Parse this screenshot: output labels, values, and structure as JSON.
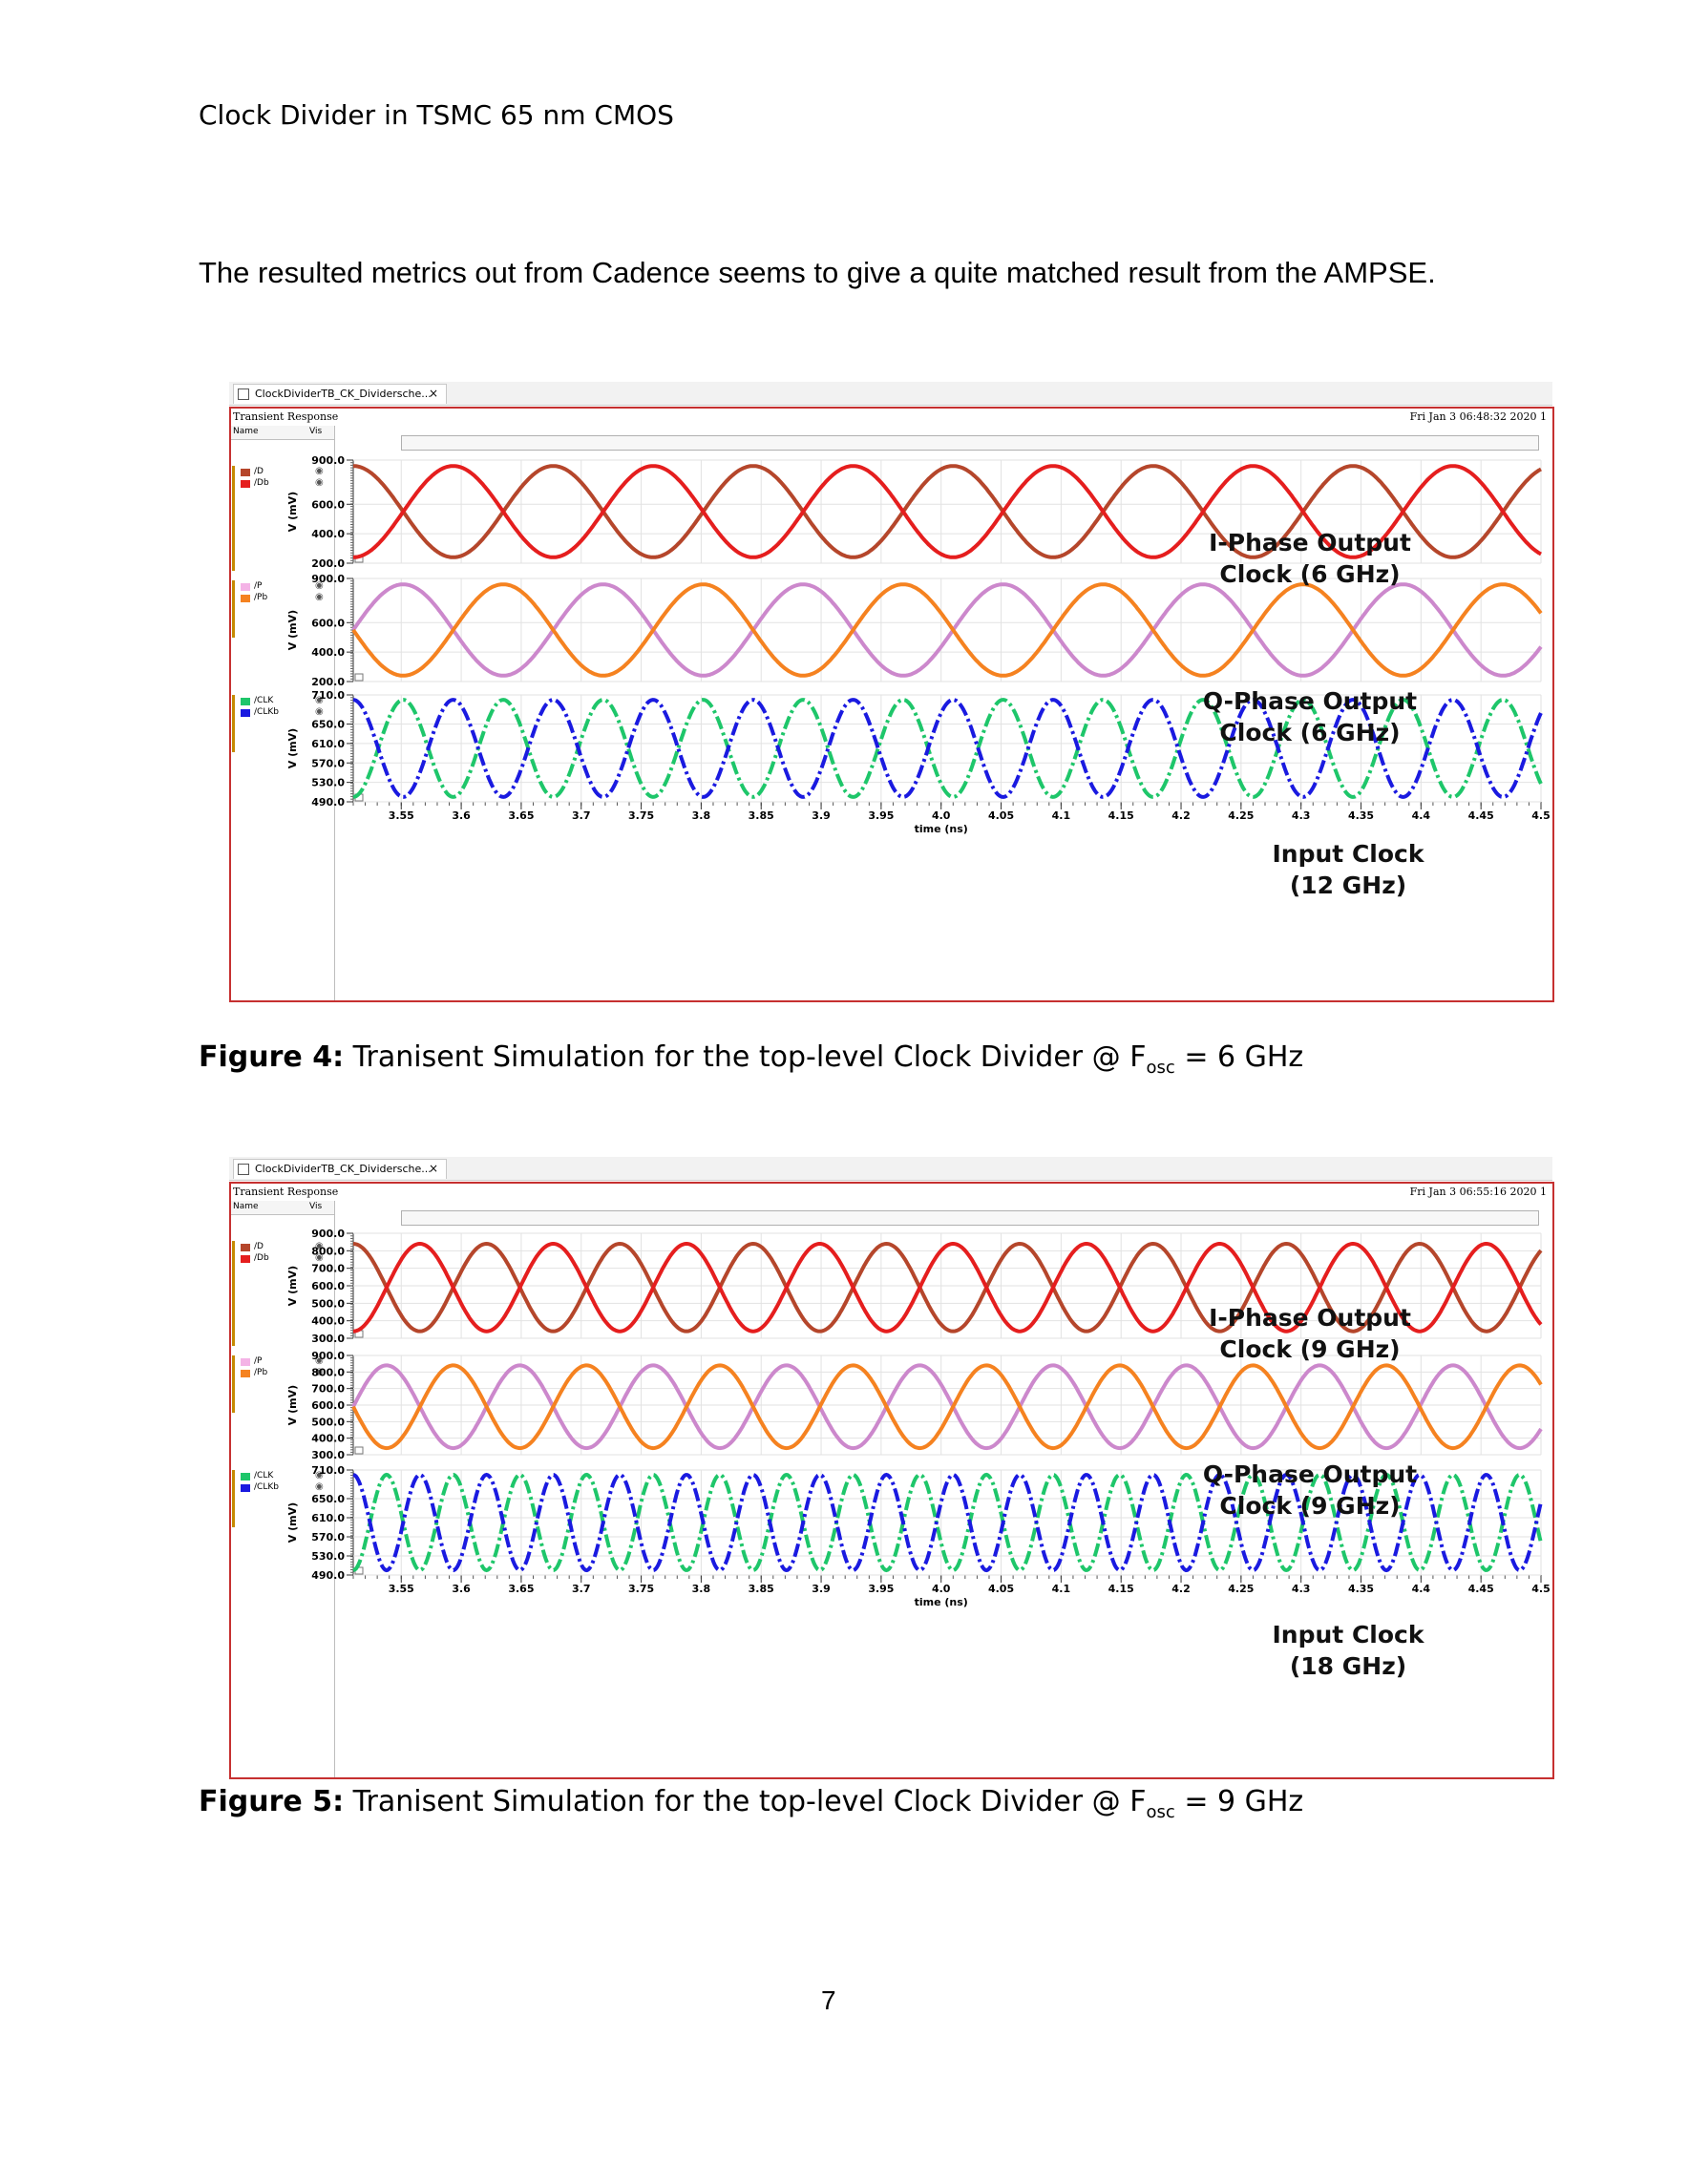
{
  "header": "Clock Divider in TSMC 65 nm CMOS",
  "intro": "The resulted metrics out from Cadence seems to give a quite matched result from the AMPSE.",
  "page_number": "7",
  "figures": [
    {
      "tab_label": "ClockDividerTB_CK_Dividersche...",
      "tab_close": "×",
      "panel_title": "Transient Response",
      "legend_head_name": "Name",
      "legend_head_vis": "Vis",
      "datestamp": "Fri Jan 3 06:48:32 2020  1",
      "caption_bold": "Figure 4:",
      "caption_text": " Tranisent Simulation for the top-level Clock Divider @ F",
      "caption_sub": "osc",
      "caption_tail": " = 6 GHz",
      "xlabel": "time (ns)",
      "ylabel": "V (mV)",
      "legend": [
        [
          {
            "name": "/D",
            "color": "#b5462b"
          },
          {
            "name": "/Db",
            "color": "#e51e1e"
          }
        ],
        [
          {
            "name": "/P",
            "color": "#f4b3e6"
          },
          {
            "name": "/Pb",
            "color": "#f58220"
          }
        ],
        [
          {
            "name": "/CLK",
            "color": "#1ec66a"
          },
          {
            "name": "/CLKb",
            "color": "#1a1ae0"
          }
        ]
      ],
      "overlays": [
        {
          "line1": "I-Phase Output",
          "line2": "Clock (6 GHz)"
        },
        {
          "line1": "Q-Phase Output",
          "line2": "Clock (6 GHz)"
        },
        {
          "line1": "Input Clock",
          "line2": "(12 GHz)"
        }
      ]
    },
    {
      "tab_label": "ClockDividerTB_CK_Dividersche...",
      "tab_close": "×",
      "panel_title": "Transient Response",
      "legend_head_name": "Name",
      "legend_head_vis": "Vis",
      "datestamp": "Fri Jan 3 06:55:16 2020  1",
      "caption_bold": "Figure 5:",
      "caption_text": " Tranisent Simulation for the top-level Clock Divider @ F",
      "caption_sub": "osc",
      "caption_tail": " = 9 GHz",
      "xlabel": "time (ns)",
      "ylabel": "V (mV)",
      "legend": [
        [
          {
            "name": "/D",
            "color": "#b5462b"
          },
          {
            "name": "/Db",
            "color": "#e51e1e"
          }
        ],
        [
          {
            "name": "/P",
            "color": "#f4b3e6"
          },
          {
            "name": "/Pb",
            "color": "#f58220"
          }
        ],
        [
          {
            "name": "/CLK",
            "color": "#1ec66a"
          },
          {
            "name": "/CLKb",
            "color": "#1a1ae0"
          }
        ]
      ],
      "overlays": [
        {
          "line1": "I-Phase Output",
          "line2": "Clock (9 GHz)"
        },
        {
          "line1": "Q-Phase Output",
          "line2": "Clock (9 GHz)"
        },
        {
          "line1": "Input Clock",
          "line2": "(18 GHz)"
        }
      ]
    }
  ],
  "chart_data": [
    {
      "type": "line",
      "title": "Transient Response",
      "xlabel": "time (ns)",
      "ylabel": "V (mV)",
      "xlim": [
        3.51,
        4.5
      ],
      "x_ticks": [
        "3.55",
        "3.6",
        "3.65",
        "3.7",
        "3.75",
        "3.8",
        "3.85",
        "3.9",
        "3.95",
        "4.0",
        "4.05",
        "4.1",
        "4.15",
        "4.2",
        "4.25",
        "4.3",
        "4.35",
        "4.4",
        "4.45",
        "4.5"
      ],
      "subplots": [
        {
          "ylim": [
            200,
            900
          ],
          "y_ticks": [
            "900.0",
            "600.0",
            "400.0",
            "200.0"
          ],
          "series": [
            {
              "name": "/D",
              "frequency_ghz": 6,
              "min": 240,
              "max": 860,
              "color": "#b5462b",
              "phase": 0
            },
            {
              "name": "/Db",
              "frequency_ghz": 6,
              "min": 240,
              "max": 860,
              "color": "#e51e1e",
              "phase": 0.5
            }
          ]
        },
        {
          "ylim": [
            200,
            900
          ],
          "y_ticks": [
            "900.0",
            "600.0",
            "400.0",
            "200.0"
          ],
          "series": [
            {
              "name": "/P",
              "frequency_ghz": 6,
              "min": 240,
              "max": 860,
              "color": "#cc88cc",
              "phase": 0.25
            },
            {
              "name": "/Pb",
              "frequency_ghz": 6,
              "min": 240,
              "max": 860,
              "color": "#f58220",
              "phase": 0.75
            }
          ]
        },
        {
          "ylim": [
            490,
            710
          ],
          "y_ticks": [
            "710.0",
            "650.0",
            "610.0",
            "570.0",
            "530.0",
            "490.0"
          ],
          "series": [
            {
              "name": "/CLK",
              "frequency_ghz": 12,
              "min": 500,
              "max": 700,
              "color": "#1ec66a",
              "phase": 0.5
            },
            {
              "name": "/CLKb",
              "frequency_ghz": 12,
              "min": 500,
              "max": 700,
              "color": "#1a1ae0",
              "phase": 0
            }
          ]
        }
      ]
    },
    {
      "type": "line",
      "title": "Transient Response",
      "xlabel": "time (ns)",
      "ylabel": "V (mV)",
      "xlim": [
        3.51,
        4.5
      ],
      "x_ticks": [
        "3.55",
        "3.6",
        "3.65",
        "3.7",
        "3.75",
        "3.8",
        "3.85",
        "3.9",
        "3.95",
        "4.0",
        "4.05",
        "4.1",
        "4.15",
        "4.2",
        "4.25",
        "4.3",
        "4.35",
        "4.4",
        "4.45",
        "4.5"
      ],
      "subplots": [
        {
          "ylim": [
            300,
            900
          ],
          "y_ticks": [
            "900.0",
            "800.0",
            "700.0",
            "600.0",
            "500.0",
            "400.0",
            "300.0"
          ],
          "series": [
            {
              "name": "/D",
              "frequency_ghz": 9,
              "min": 340,
              "max": 840,
              "color": "#b5462b",
              "phase": 0
            },
            {
              "name": "/Db",
              "frequency_ghz": 9,
              "min": 340,
              "max": 840,
              "color": "#e51e1e",
              "phase": 0.5
            }
          ]
        },
        {
          "ylim": [
            300,
            900
          ],
          "y_ticks": [
            "900.0",
            "800.0",
            "700.0",
            "600.0",
            "500.0",
            "400.0",
            "300.0"
          ],
          "series": [
            {
              "name": "/P",
              "frequency_ghz": 9,
              "min": 340,
              "max": 840,
              "color": "#cc88cc",
              "phase": 0.25
            },
            {
              "name": "/Pb",
              "frequency_ghz": 9,
              "min": 340,
              "max": 840,
              "color": "#f58220",
              "phase": 0.75
            }
          ]
        },
        {
          "ylim": [
            490,
            710
          ],
          "y_ticks": [
            "710.0",
            "650.0",
            "610.0",
            "570.0",
            "530.0",
            "490.0"
          ],
          "series": [
            {
              "name": "/CLK",
              "frequency_ghz": 18,
              "min": 500,
              "max": 700,
              "color": "#1ec66a",
              "phase": 0.5
            },
            {
              "name": "/CLKb",
              "frequency_ghz": 18,
              "min": 500,
              "max": 700,
              "color": "#1a1ae0",
              "phase": 0
            }
          ]
        }
      ]
    }
  ]
}
